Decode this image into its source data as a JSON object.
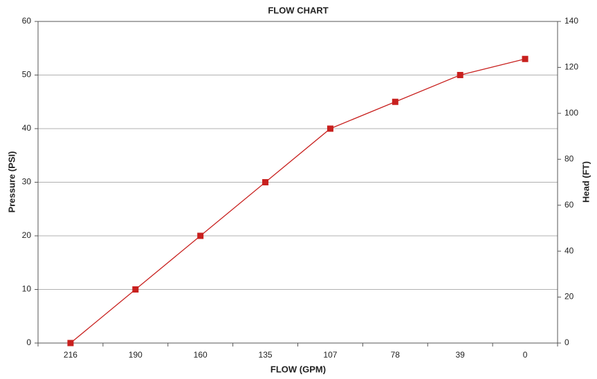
{
  "chart_data": {
    "type": "line",
    "title": "FLOW CHART",
    "x_label": "FLOW (GPM)",
    "y_label": "Pressure (PSI)",
    "y2_label": "Head (FT)",
    "categories": [
      "216",
      "190",
      "160",
      "135",
      "107",
      "78",
      "39",
      "0"
    ],
    "values": [
      0,
      10,
      20,
      30,
      40,
      45,
      50,
      53
    ],
    "color": "#c8201e",
    "ylim": [
      0,
      60
    ],
    "yticks": [
      0,
      10,
      20,
      30,
      40,
      50,
      60
    ],
    "y2lim": [
      0,
      140
    ],
    "y2ticks": [
      0,
      20,
      40,
      60,
      80,
      100,
      120,
      140
    ],
    "grid": true
  }
}
